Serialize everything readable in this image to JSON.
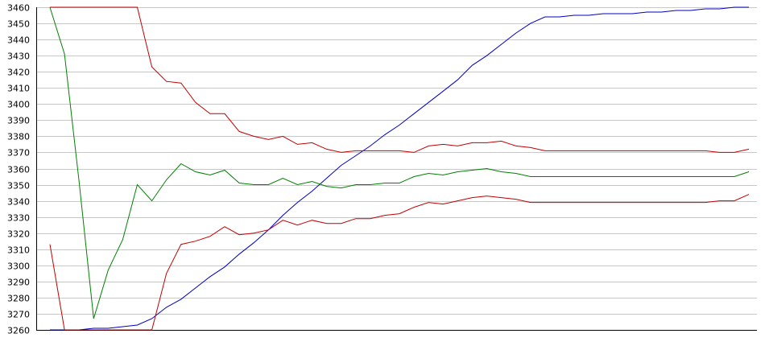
{
  "chart_data": {
    "type": "line",
    "title": "",
    "xlabel": "",
    "ylabel": "",
    "ylim": [
      3260,
      3460
    ],
    "yticks": [
      3460,
      3450,
      3440,
      3430,
      3420,
      3410,
      3400,
      3390,
      3380,
      3370,
      3360,
      3350,
      3340,
      3330,
      3320,
      3310,
      3300,
      3290,
      3280,
      3270,
      3260
    ],
    "grid": true,
    "legend": "none",
    "x": [
      0,
      1,
      2,
      3,
      4,
      5,
      6,
      7,
      8,
      9,
      10,
      11,
      12,
      13,
      14,
      15,
      16,
      17,
      18,
      19,
      20,
      21,
      22,
      23,
      24,
      25,
      26,
      27,
      28,
      29,
      30,
      31,
      32,
      33,
      34,
      35,
      36,
      37,
      38,
      39,
      40,
      41,
      42,
      43,
      44,
      45,
      46,
      47,
      48
    ],
    "series": [
      {
        "color": "#0000c0",
        "values": [
          3260,
          3260,
          3260,
          3261,
          3261,
          3262,
          3263,
          3267,
          3274,
          3279,
          3286,
          3293,
          3299,
          3307,
          3314,
          3322,
          3331,
          3339,
          3346,
          3354,
          3362,
          3368,
          3374,
          3381,
          3387,
          3394,
          3401,
          3408,
          3415,
          3424,
          3430,
          3437,
          3444,
          3450,
          3454,
          3454,
          3455,
          3455,
          3456,
          3456,
          3456,
          3457,
          3457,
          3458,
          3458,
          3459,
          3459,
          3460,
          3460
        ]
      },
      {
        "color": "#c00000",
        "values": [
          3460,
          3460,
          3460,
          3460,
          3460,
          3460,
          3460,
          3423,
          3414,
          3413,
          3401,
          3394,
          3394,
          3383,
          3380,
          3378,
          3380,
          3375,
          3376,
          3372,
          3370,
          3371,
          3371,
          3371,
          3371,
          3370,
          3374,
          3375,
          3374,
          3376,
          3376,
          3377,
          3374,
          3373,
          3371,
          3371,
          3371,
          3371,
          3371,
          3371,
          3371,
          3371,
          3371,
          3371,
          3371,
          3371,
          3370,
          3370,
          3372
        ]
      },
      {
        "color": "#008000",
        "values": [
          3460,
          3431,
          3352,
          3267,
          3297,
          3316,
          3350,
          3340,
          3353,
          3363,
          3358,
          3356,
          3359,
          3351,
          3350,
          3350,
          3354,
          3350,
          3352,
          3349,
          3348,
          3350,
          3350,
          3351,
          3351,
          3355,
          3357,
          3356,
          3358,
          3359,
          3360,
          3358,
          3357,
          3355,
          3355,
          3355,
          3355,
          3355,
          3355,
          3355,
          3355,
          3355,
          3355,
          3355,
          3355,
          3355,
          3355,
          3355,
          3358
        ]
      },
      {
        "color": "#c00000",
        "values": [
          3313,
          3260,
          3260,
          3260,
          3260,
          3260,
          3260,
          3260,
          3295,
          3313,
          3315,
          3318,
          3324,
          3319,
          3320,
          3322,
          3328,
          3325,
          3328,
          3326,
          3326,
          3329,
          3329,
          3331,
          3332,
          3336,
          3339,
          3338,
          3340,
          3342,
          3343,
          3342,
          3341,
          3339,
          3339,
          3339,
          3339,
          3339,
          3339,
          3339,
          3339,
          3339,
          3339,
          3339,
          3339,
          3339,
          3340,
          3340,
          3344
        ]
      }
    ]
  }
}
